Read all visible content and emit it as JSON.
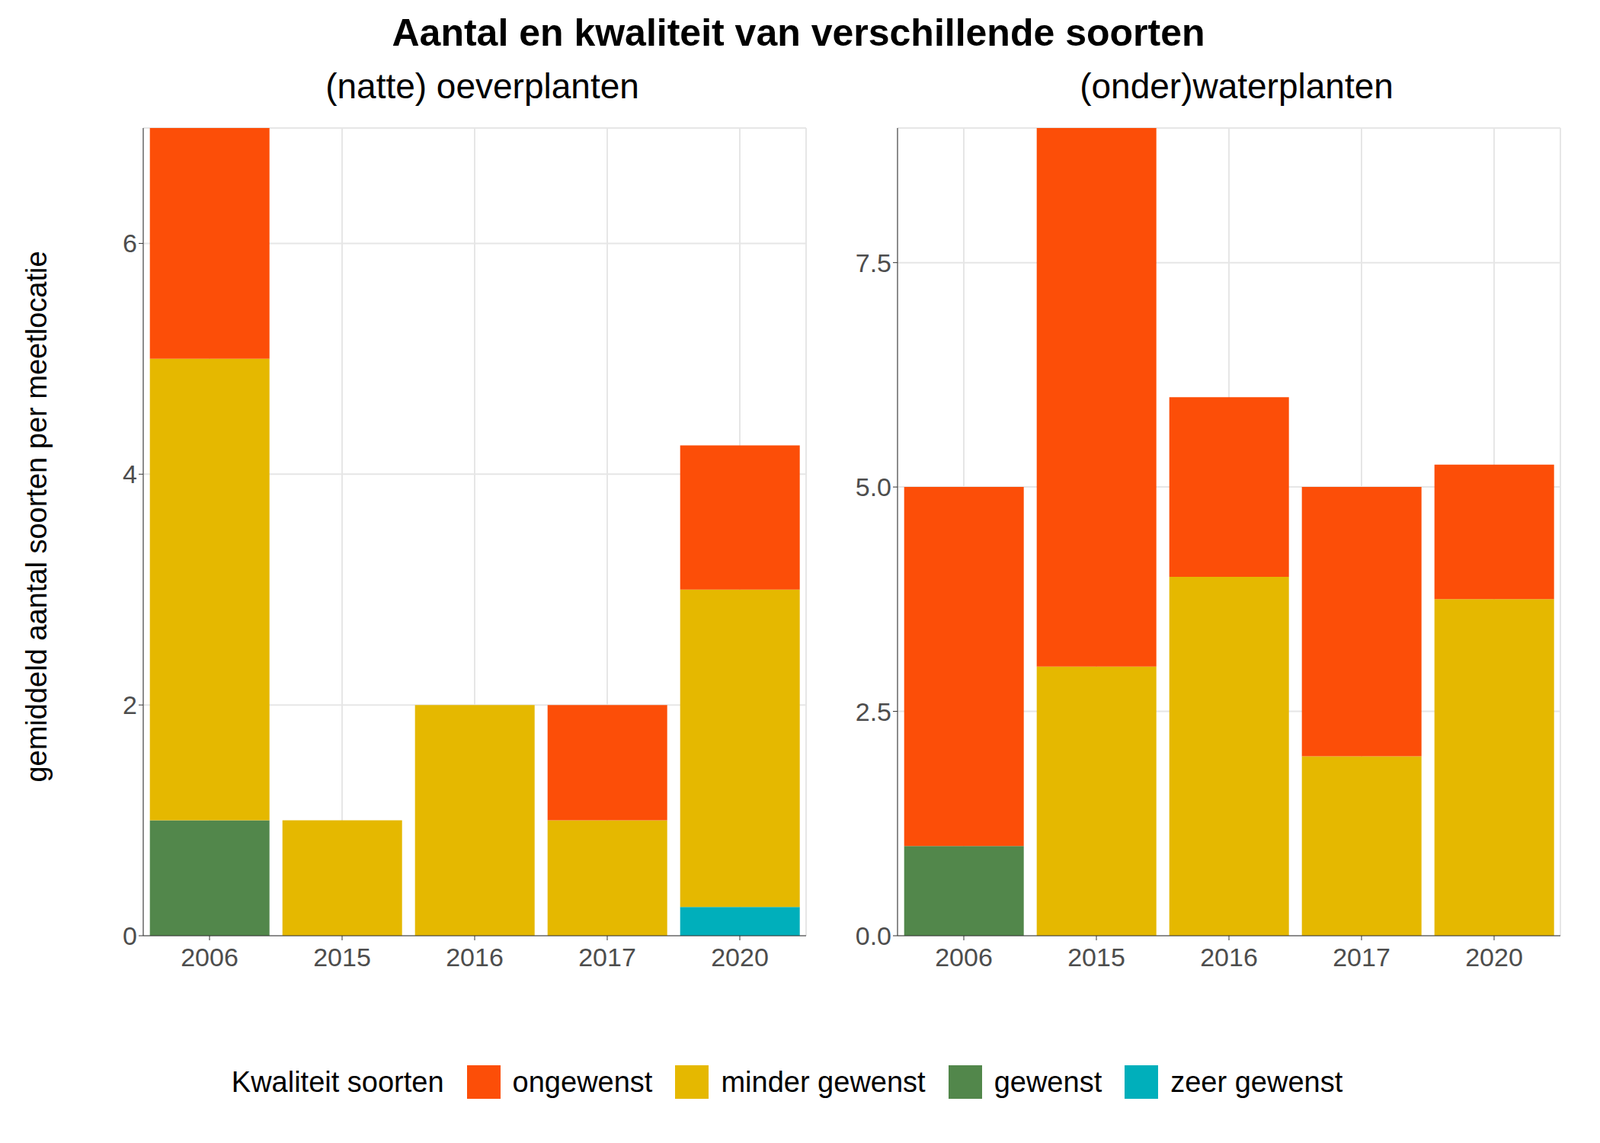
{
  "chart_data": {
    "type": "bar",
    "title": "Aantal en kwaliteit van verschillende soorten",
    "ylabel": "gemiddeld aantal soorten per meetlocatie",
    "legend_title": "Kwaliteit soorten",
    "legend": "bottom",
    "stacked": true,
    "grid": true,
    "panels": [
      {
        "subtitle": "(natte) oeverplanten",
        "categories": [
          "2006",
          "2015",
          "2016",
          "2017",
          "2020"
        ],
        "ylim": [
          0,
          7
        ],
        "yticks": [
          0,
          2,
          4,
          6
        ],
        "series": [
          {
            "name": "ongewenst",
            "color": "#FC4E08",
            "values": [
              2,
              0,
              0,
              1,
              1.25
            ]
          },
          {
            "name": "minder gewenst",
            "color": "#E5B800",
            "values": [
              4,
              1,
              2,
              1,
              2.75
            ]
          },
          {
            "name": "gewenst",
            "color": "#52874B",
            "values": [
              1,
              0,
              0,
              0,
              0
            ]
          },
          {
            "name": "zeer gewenst",
            "color": "#00AFBB",
            "values": [
              0,
              0,
              0,
              0,
              0.25
            ]
          }
        ]
      },
      {
        "subtitle": "(onder)waterplanten",
        "categories": [
          "2006",
          "2015",
          "2016",
          "2017",
          "2020"
        ],
        "ylim": [
          0,
          9
        ],
        "yticks": [
          {
            "value": 0,
            "label": "0.0"
          },
          {
            "value": 2.5,
            "label": "2.5"
          },
          {
            "value": 5,
            "label": "5.0"
          },
          {
            "value": 7.5,
            "label": "7.5"
          }
        ],
        "series": [
          {
            "name": "ongewenst",
            "color": "#FC4E08",
            "values": [
              4,
              6,
              2,
              3,
              1.5
            ]
          },
          {
            "name": "minder gewenst",
            "color": "#E5B800",
            "values": [
              0,
              3,
              4,
              2,
              3.75
            ]
          },
          {
            "name": "gewenst",
            "color": "#52874B",
            "values": [
              1,
              0,
              0,
              0,
              0
            ]
          }
        ]
      }
    ]
  }
}
